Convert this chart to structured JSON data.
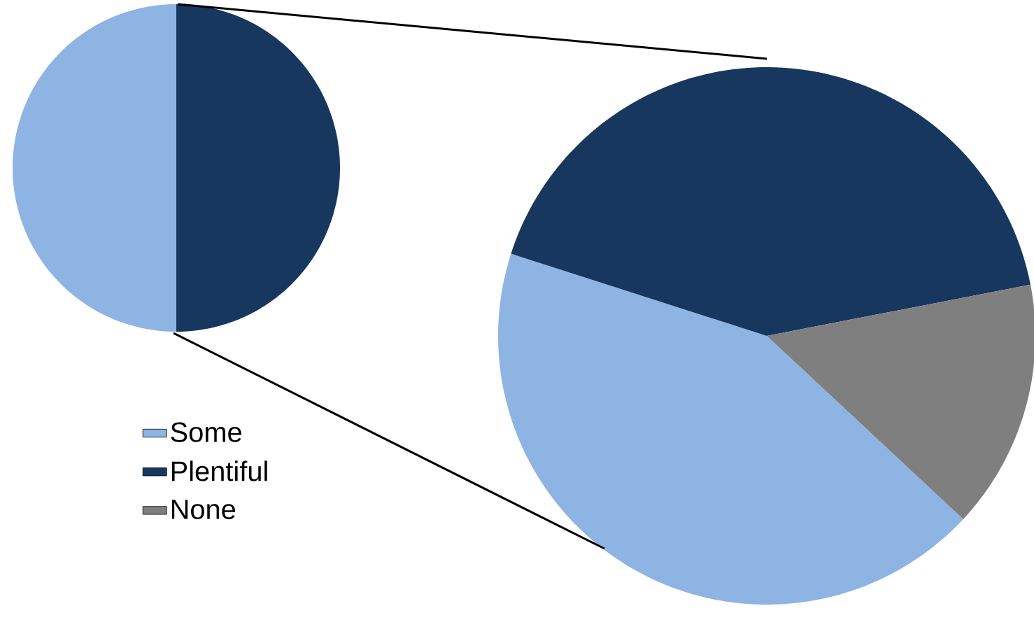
{
  "chart_data": [
    {
      "type": "pie",
      "categories": [
        null,
        null
      ],
      "values": [
        50,
        50
      ],
      "colors": [
        "#8eb4e3",
        "#17375e"
      ]
    },
    {
      "type": "pie",
      "categories": [
        "Some",
        "Plentiful",
        "None"
      ],
      "values": [
        43,
        42,
        15
      ],
      "colors": [
        "#8eb4e3",
        "#17375e",
        "#7f7f7f"
      ],
      "legend": "bottom left"
    }
  ]
}
